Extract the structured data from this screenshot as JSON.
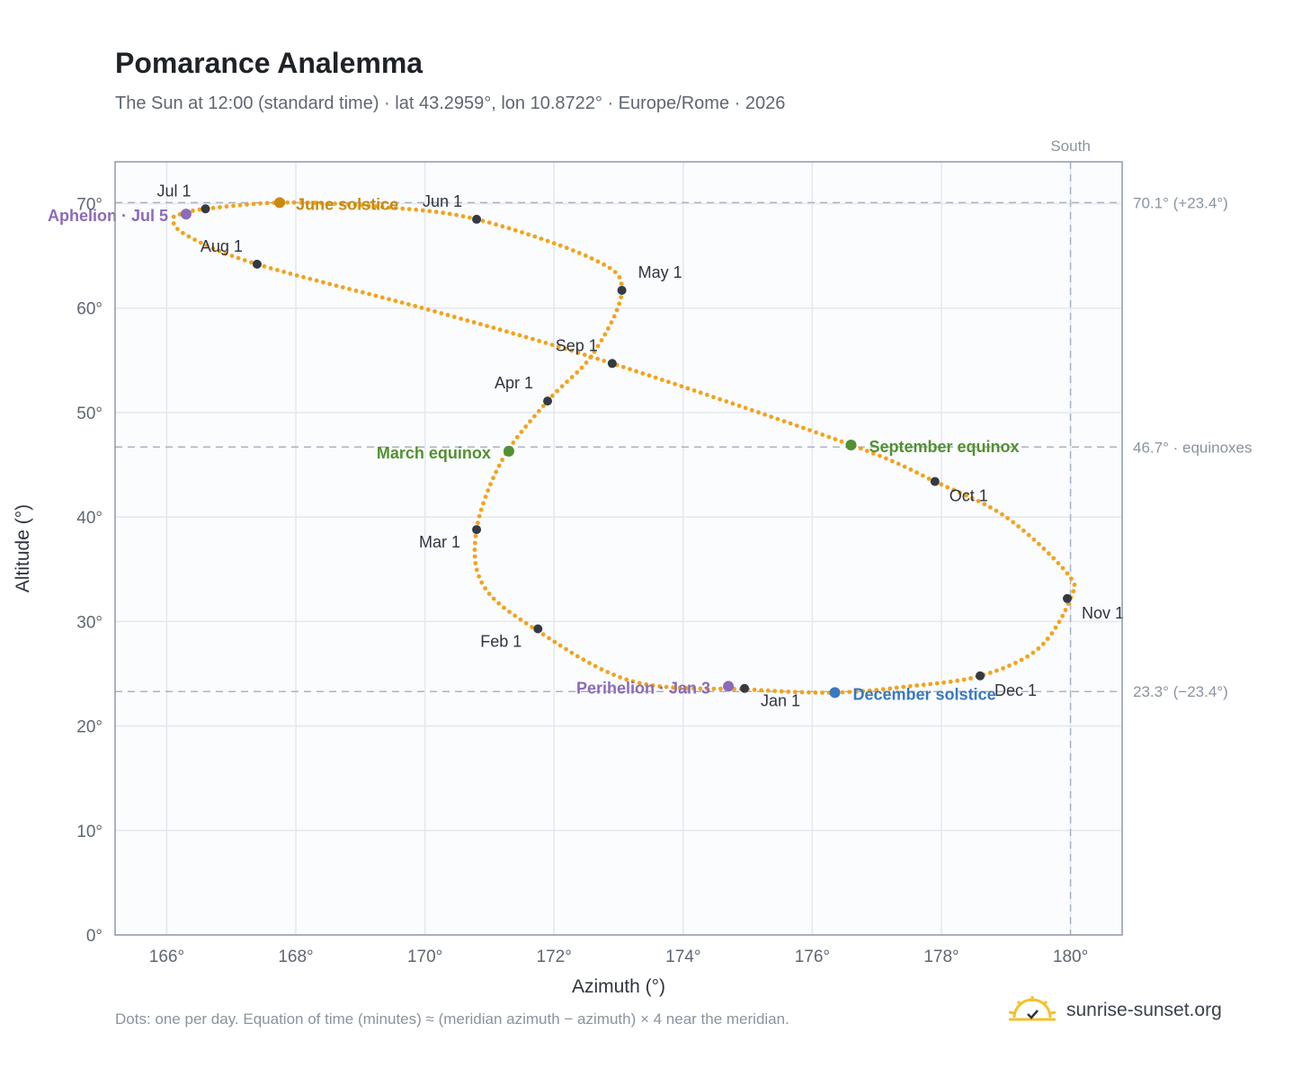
{
  "header": {
    "title": "Pomarance Analemma",
    "subtitle": "The Sun at 12:00 (standard time) · lat 43.2959°, lon 10.8722° · Europe/Rome · 2026"
  },
  "footer": {
    "note": "Dots: one per day. Equation of time (minutes) ≈ (meridian azimuth − azimuth) × 4 near the meridian.",
    "brand": "sunrise-sunset.org"
  },
  "chart_data": {
    "type": "scatter",
    "xlabel": "Azimuth (°)",
    "ylabel": "Altitude (°)",
    "xlim": [
      165.2,
      180.8
    ],
    "ylim": [
      0,
      74
    ],
    "x_ticks": [
      166,
      168,
      170,
      172,
      174,
      176,
      178,
      180
    ],
    "x_tick_labels": [
      "166°",
      "168°",
      "170°",
      "172°",
      "174°",
      "176°",
      "178°",
      "180°"
    ],
    "y_ticks": [
      0,
      10,
      20,
      30,
      40,
      50,
      60,
      70
    ],
    "y_tick_labels": [
      "0°",
      "10°",
      "20°",
      "30°",
      "40°",
      "50°",
      "60°",
      "70°"
    ],
    "grid": true,
    "colors": {
      "path": "#f2a31d",
      "month": "#343a44",
      "solstice_june": "#c98a10",
      "solstice_december": "#3a78c0",
      "equinox": "#529032",
      "apsis": "#8a6bb8",
      "reference": "#a9b4c2"
    },
    "south": {
      "label": "South",
      "azimuth": 180
    },
    "reference_lines": [
      {
        "altitude": 70.1,
        "label": "70.1° (+23.4°)"
      },
      {
        "altitude": 46.7,
        "label": "46.7° · equinoxes"
      },
      {
        "altitude": 23.3,
        "label": "23.3° (−23.4°)"
      }
    ],
    "path_points": [
      [
        175.0,
        23.5
      ],
      [
        173.2,
        24.3
      ],
      [
        171.7,
        29.3
      ],
      [
        170.9,
        33.5
      ],
      [
        170.8,
        38.8
      ],
      [
        171.2,
        45.5
      ],
      [
        171.9,
        51.1
      ],
      [
        172.6,
        55.6
      ],
      [
        173.05,
        61.7
      ],
      [
        172.6,
        64.7
      ],
      [
        170.8,
        68.5
      ],
      [
        169.3,
        69.7
      ],
      [
        167.8,
        70.1
      ],
      [
        166.6,
        69.5
      ],
      [
        166.3,
        69.1
      ],
      [
        166.1,
        68.6
      ],
      [
        166.3,
        67.0
      ],
      [
        167.4,
        64.2
      ],
      [
        170.2,
        59.6
      ],
      [
        172.9,
        54.7
      ],
      [
        176.6,
        46.9
      ],
      [
        177.9,
        43.4
      ],
      [
        179.0,
        40.0
      ],
      [
        179.95,
        34.6
      ],
      [
        180.0,
        32.2
      ],
      [
        179.5,
        27.4
      ],
      [
        178.6,
        24.8
      ],
      [
        177.5,
        23.8
      ],
      [
        176.35,
        23.2
      ],
      [
        175.0,
        23.5
      ]
    ],
    "months": [
      {
        "label": "Jan 1",
        "x": 174.95,
        "y": 23.6,
        "anchor": "middle",
        "dx": 40,
        "dy": 20
      },
      {
        "label": "Feb 1",
        "x": 171.75,
        "y": 29.3,
        "anchor": "end",
        "dx": -18,
        "dy": 20
      },
      {
        "label": "Mar 1",
        "x": 170.8,
        "y": 38.8,
        "anchor": "end",
        "dx": -18,
        "dy": 20
      },
      {
        "label": "Apr 1",
        "x": 171.9,
        "y": 51.1,
        "anchor": "end",
        "dx": -16,
        "dy": -14
      },
      {
        "label": "May 1",
        "x": 173.05,
        "y": 61.7,
        "anchor": "start",
        "dx": 18,
        "dy": -14
      },
      {
        "label": "Jun 1",
        "x": 170.8,
        "y": 68.5,
        "anchor": "end",
        "dx": -16,
        "dy": -14
      },
      {
        "label": "Jul 1",
        "x": 166.6,
        "y": 69.5,
        "anchor": "end",
        "dx": -16,
        "dy": -14
      },
      {
        "label": "Aug 1",
        "x": 167.4,
        "y": 64.2,
        "anchor": "end",
        "dx": -16,
        "dy": -14
      },
      {
        "label": "Sep 1",
        "x": 172.9,
        "y": 54.7,
        "anchor": "end",
        "dx": -16,
        "dy": -14
      },
      {
        "label": "Oct 1",
        "x": 177.9,
        "y": 43.4,
        "anchor": "start",
        "dx": 16,
        "dy": 22
      },
      {
        "label": "Nov 1",
        "x": 179.95,
        "y": 32.2,
        "anchor": "start",
        "dx": 16,
        "dy": 22
      },
      {
        "label": "Dec 1",
        "x": 178.6,
        "y": 24.8,
        "anchor": "start",
        "dx": 16,
        "dy": 22
      }
    ],
    "events": [
      {
        "label": "June solstice",
        "x": 167.75,
        "y": 70.1,
        "color": "#c98a10",
        "anchor": "start",
        "dx": 18
      },
      {
        "label": "December solstice",
        "x": 176.35,
        "y": 23.2,
        "color": "#3a78c0",
        "anchor": "start",
        "dx": 20
      },
      {
        "label": "March equinox",
        "x": 171.3,
        "y": 46.3,
        "color": "#529032",
        "anchor": "end",
        "dx": -20
      },
      {
        "label": "September equinox",
        "x": 176.6,
        "y": 46.9,
        "color": "#529032",
        "anchor": "start",
        "dx": 20
      },
      {
        "label": "Perihelion · Jan 3",
        "x": 174.7,
        "y": 23.8,
        "color": "#8a6bb8",
        "anchor": "end",
        "dx": -20
      },
      {
        "label": "Aphelion · Jul 5",
        "x": 166.3,
        "y": 69.0,
        "color": "#8a6bb8",
        "anchor": "end",
        "dx": -20
      }
    ]
  }
}
